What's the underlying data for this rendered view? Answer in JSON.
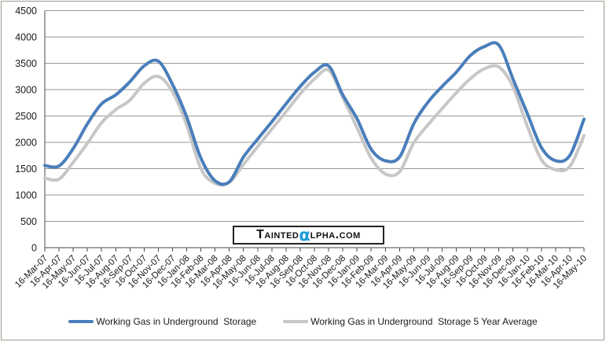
{
  "chart_data": {
    "type": "line",
    "title": "",
    "xlabel": "",
    "ylabel": "",
    "categories": [
      "16-Mar-07",
      "16-Apr-07",
      "16-May-07",
      "16-Jun-07",
      "16-Jul-07",
      "16-Aug-07",
      "16-Sep-07",
      "16-Oct-07",
      "16-Nov-07",
      "16-Dec-07",
      "16-Jan-08",
      "16-Feb-08",
      "16-Mar-08",
      "16-Apr-08",
      "16-May-08",
      "16-Jun-08",
      "16-Jul-08",
      "16-Aug-08",
      "16-Sep-08",
      "16-Oct-08",
      "16-Nov-08",
      "16-Dec-08",
      "16-Jan-09",
      "16-Feb-09",
      "16-Mar-09",
      "16-Apr-09",
      "16-May-09",
      "16-Jun-09",
      "16-Jul-09",
      "16-Aug-09",
      "16-Sep-09",
      "16-Oct-09",
      "16-Nov-09",
      "16-Dec-09",
      "16-Jan-10",
      "16-Feb-10",
      "16-Mar-10",
      "16-Apr-10",
      "16-May-10"
    ],
    "series": [
      {
        "name": "Working Gas in Underground  Storage",
        "color": "#4a7ebb",
        "values": [
          1560,
          1550,
          1880,
          2350,
          2730,
          2900,
          3150,
          3450,
          3540,
          3100,
          2480,
          1700,
          1270,
          1250,
          1720,
          2060,
          2390,
          2730,
          3060,
          3330,
          3450,
          2900,
          2450,
          1870,
          1650,
          1720,
          2350,
          2760,
          3060,
          3330,
          3650,
          3820,
          3845,
          3200,
          2550,
          1900,
          1650,
          1750,
          2440
        ]
      },
      {
        "name": "Working Gas in Underground  Storage 5 Year Average",
        "color": "#c7c7c7",
        "values": [
          1320,
          1300,
          1620,
          1980,
          2370,
          2620,
          2800,
          3120,
          3250,
          2960,
          2330,
          1500,
          1220,
          1240,
          1580,
          1920,
          2250,
          2580,
          2920,
          3200,
          3370,
          2850,
          2280,
          1700,
          1400,
          1440,
          1990,
          2330,
          2640,
          2940,
          3210,
          3400,
          3430,
          3050,
          2310,
          1670,
          1480,
          1540,
          2130
        ]
      }
    ],
    "ylim": [
      0,
      4500
    ],
    "yticks": [
      0,
      500,
      1000,
      1500,
      2000,
      2500,
      3000,
      3500,
      4000,
      4500
    ],
    "grid": true,
    "legend_position": "bottom",
    "gridline_color": "#989898",
    "axis_color": "#4a4a4a",
    "text_color": "#1a1a1a"
  },
  "watermark": {
    "part1": "Tainted",
    "alpha": "α",
    "part2": "lpha.com",
    "alpha_color": "#1e9cd7"
  }
}
